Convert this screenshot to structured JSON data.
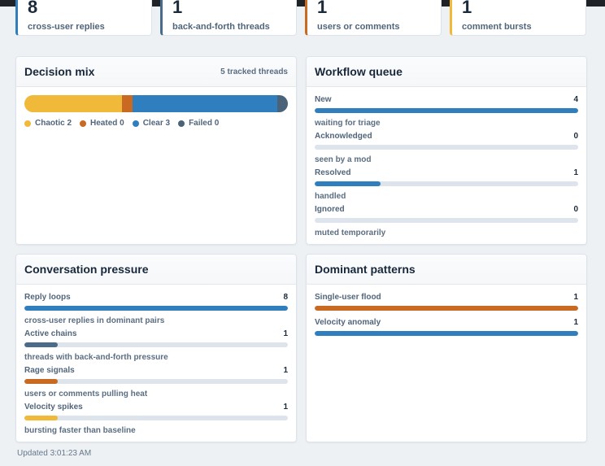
{
  "stats": [
    {
      "value": "8",
      "label": "cross-user replies",
      "color": "#2f7fbf"
    },
    {
      "value": "1",
      "label": "back-and-forth threads",
      "color": "#4a6b8a"
    },
    {
      "value": "1",
      "label": "users or comments",
      "color": "#c96a22"
    },
    {
      "value": "1",
      "label": "comment bursts",
      "color": "#f0b93a"
    }
  ],
  "decision_mix": {
    "title": "Decision mix",
    "meta": "5 tracked threads",
    "segments": [
      {
        "label": "Chaotic 2",
        "count": 2,
        "color": "#f0b93a",
        "fraction": 0.37
      },
      {
        "label": "Heated 0",
        "count": 0,
        "color": "#c96a22",
        "fraction": 0.04
      },
      {
        "label": "Clear 3",
        "count": 3,
        "color": "#2f7fbf",
        "fraction": 0.55
      },
      {
        "label": "Failed 0",
        "count": 0,
        "color": "#4a6379",
        "fraction": 0.04
      }
    ]
  },
  "workflow": {
    "title": "Workflow queue",
    "rows": [
      {
        "label": "New",
        "value": "4",
        "sub": "waiting for triage",
        "fraction": 1.0,
        "color": "#2f7fbf"
      },
      {
        "label": "Acknowledged",
        "value": "0",
        "sub": "seen by a mod",
        "fraction": 0.0,
        "color": "#2f7fbf"
      },
      {
        "label": "Resolved",
        "value": "1",
        "sub": "handled",
        "fraction": 0.25,
        "color": "#2f7fbf"
      },
      {
        "label": "Ignored",
        "value": "0",
        "sub": "muted temporarily",
        "fraction": 0.0,
        "color": "#2f7fbf"
      }
    ]
  },
  "pressure": {
    "title": "Conversation pressure",
    "rows": [
      {
        "label": "Reply loops",
        "value": "8",
        "sub": "cross-user replies in dominant pairs",
        "fraction": 1.0,
        "color": "#2f7fbf"
      },
      {
        "label": "Active chains",
        "value": "1",
        "sub": "threads with back-and-forth pressure",
        "fraction": 0.125,
        "color": "#4a6b8a"
      },
      {
        "label": "Rage signals",
        "value": "1",
        "sub": "users or comments pulling heat",
        "fraction": 0.125,
        "color": "#c96a22"
      },
      {
        "label": "Velocity spikes",
        "value": "1",
        "sub": "bursting faster than baseline",
        "fraction": 0.125,
        "color": "#f0b93a"
      }
    ]
  },
  "patterns": {
    "title": "Dominant patterns",
    "rows": [
      {
        "label": "Single-user flood",
        "value": "1",
        "fraction": 1.0,
        "color": "#c96a22"
      },
      {
        "label": "Velocity anomaly",
        "value": "1",
        "fraction": 1.0,
        "color": "#2f7fbf"
      }
    ]
  },
  "footer": {
    "updated": "Updated 3:01:23 AM"
  }
}
